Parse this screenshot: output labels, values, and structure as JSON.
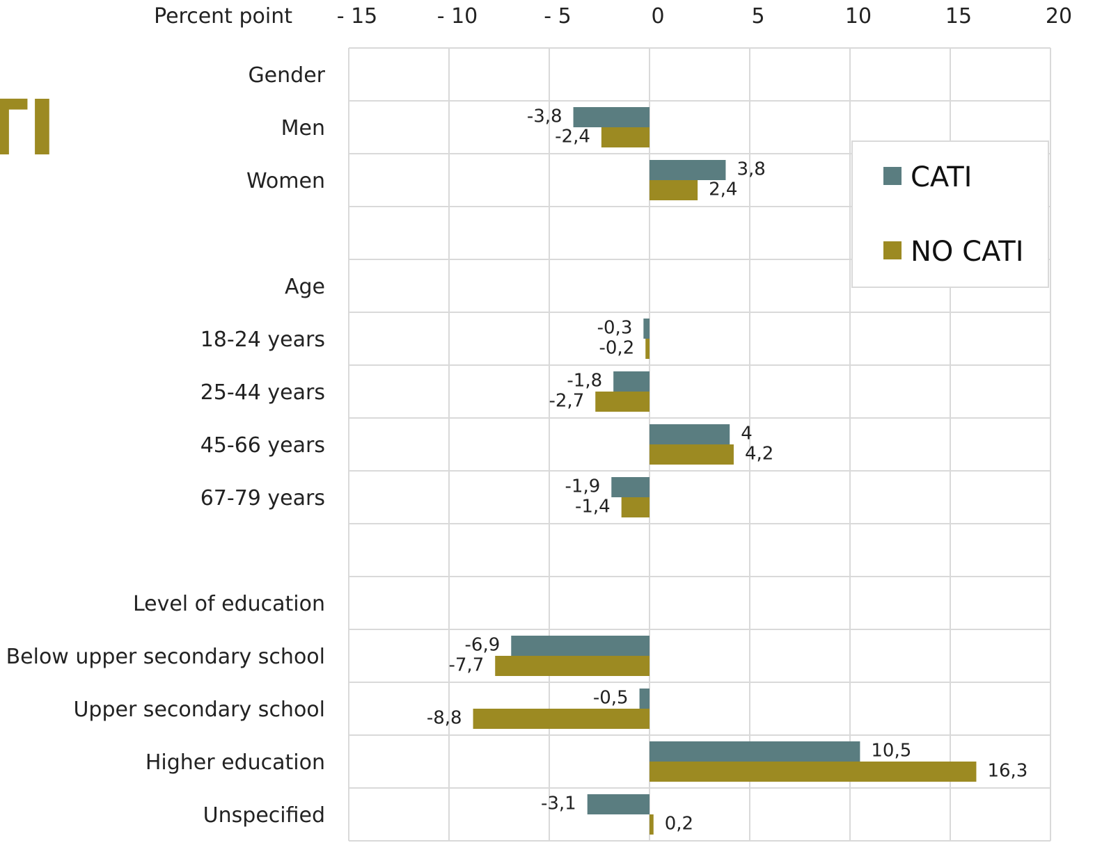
{
  "cut_title_fragment": "TI",
  "colors": {
    "cati": "#5a7d80",
    "no_cati": "#9c8a22",
    "grid": "#d9d9d9",
    "title_accent": "#9c8a22"
  },
  "chart_data": {
    "type": "bar",
    "orientation": "horizontal",
    "axis_title": "Percent point",
    "xlim": [
      -15,
      20
    ],
    "x_ticks": [
      {
        "value": -15,
        "label": "- 15"
      },
      {
        "value": -10,
        "label": "- 10"
      },
      {
        "value": -5,
        "label": "- 5"
      },
      {
        "value": 0,
        "label": "0"
      },
      {
        "value": 5,
        "label": "5"
      },
      {
        "value": 10,
        "label": "10"
      },
      {
        "value": 15,
        "label": "15"
      },
      {
        "value": 20,
        "label": "20"
      }
    ],
    "grid": true,
    "legend_position": "top-right",
    "categories": [
      "Gender",
      "Men",
      "Women",
      "",
      "Age",
      "18-24 years",
      "25-44 years",
      "45-66 years",
      "67-79 years",
      "",
      "Level of education",
      "Below upper secondary school",
      "Upper secondary school",
      "Higher education",
      "Unspecified"
    ],
    "series": [
      {
        "name": "CATI",
        "values": [
          null,
          -3.8,
          3.8,
          null,
          null,
          -0.3,
          -1.8,
          4.0,
          -1.9,
          null,
          null,
          -6.9,
          -0.5,
          10.5,
          -3.1
        ],
        "labels": [
          null,
          "-3,8",
          "3,8",
          null,
          null,
          "-0,3",
          "-1,8",
          "4",
          "-1,9",
          null,
          null,
          "-6,9",
          "-0,5",
          "10,5",
          "-3,1"
        ]
      },
      {
        "name": "NO CATI",
        "values": [
          null,
          -2.4,
          2.4,
          null,
          null,
          -0.2,
          -2.7,
          4.2,
          -1.4,
          null,
          null,
          -7.7,
          -8.8,
          16.3,
          0.2
        ],
        "labels": [
          null,
          "-2,4",
          "2,4",
          null,
          null,
          "-0,2",
          "-2,7",
          "4,2",
          "-1,4",
          null,
          null,
          "-7,7",
          "-8,8",
          "16,3",
          "0,2"
        ]
      }
    ]
  }
}
